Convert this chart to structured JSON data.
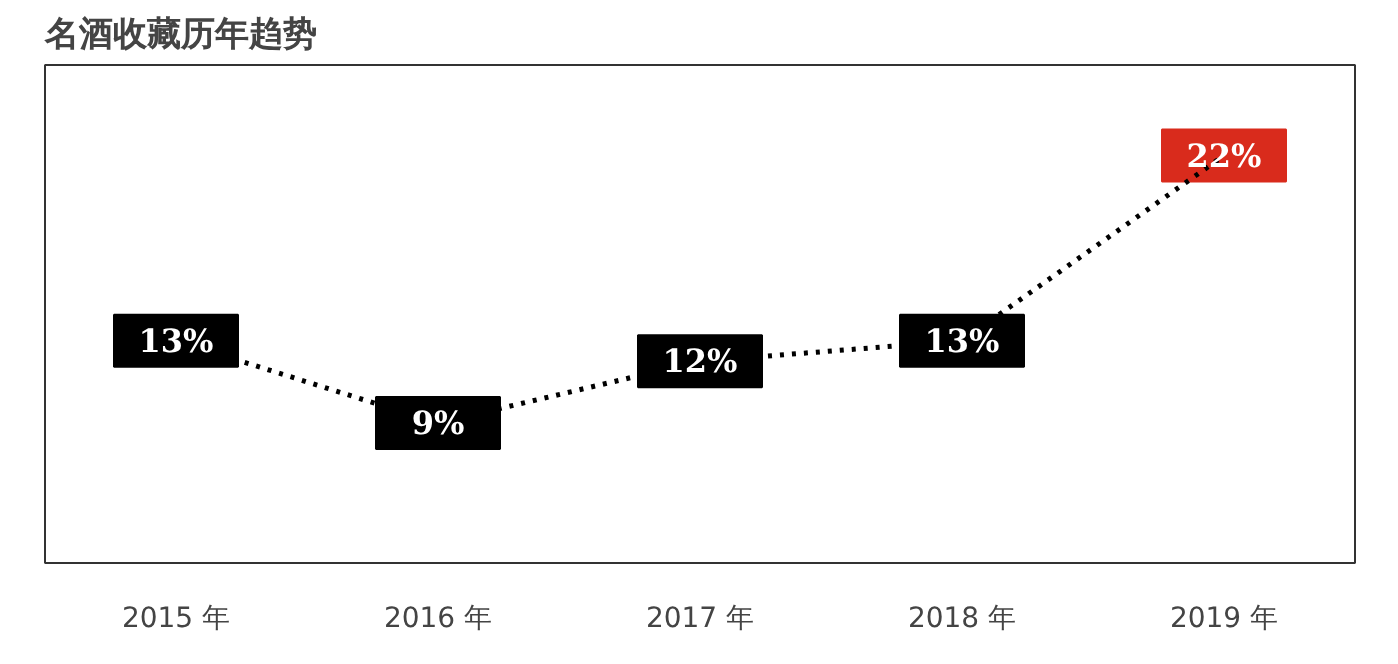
{
  "chart_data": {
    "type": "line",
    "title": "名酒收藏历年趋势",
    "categories": [
      "2015 年",
      "2016 年",
      "2017 年",
      "2018 年",
      "2019 年"
    ],
    "series": [
      {
        "color": "#000000",
        "values": [
          13,
          9,
          12,
          13,
          22
        ],
        "value_labels": [
          "13%",
          "9%",
          "12%",
          "13%",
          "22%"
        ]
      }
    ],
    "colors": [
      "#000000",
      "#000000",
      "#000000",
      "#000000",
      "#d92b1c"
    ],
    "line_style": "dotted",
    "grid": false
  }
}
